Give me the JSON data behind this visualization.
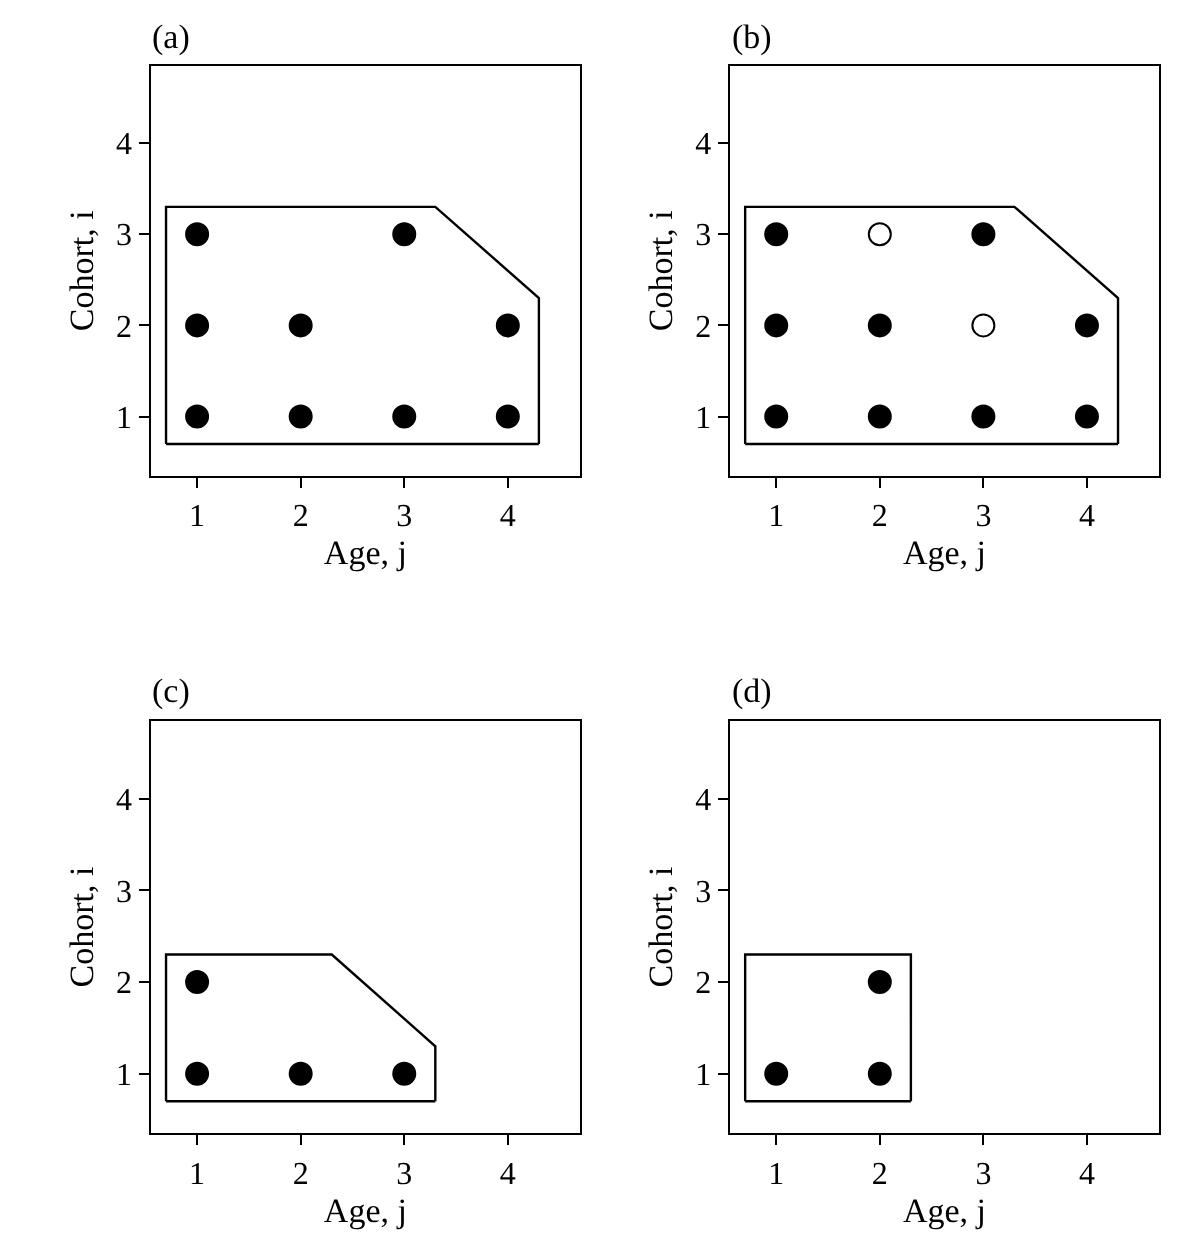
{
  "chart_data": [
    {
      "type": "scatter",
      "title": "(a)",
      "xlabel": "Age, j",
      "ylabel": "Cohort, i",
      "xlim": [
        0.55,
        4.7
      ],
      "ylim": [
        0.35,
        4.85
      ],
      "xticks": [
        1,
        2,
        3,
        4
      ],
      "yticks": [
        1,
        2,
        3,
        4
      ],
      "marker": "circle",
      "series": [
        {
          "color": "#000000",
          "x": [
            1,
            2,
            3,
            4,
            1,
            2,
            4,
            1,
            3
          ],
          "values": [
            1,
            1,
            1,
            1,
            2,
            2,
            2,
            3,
            3
          ]
        },
        {
          "type": "line",
          "marker": "none",
          "line_style": "solid",
          "color": "#000000",
          "x": [
            0.7,
            0.7,
            3.3,
            4.3,
            4.3
          ],
          "values": [
            0.7,
            3.3,
            3.3,
            2.3,
            0.7
          ]
        },
        {
          "type": "line",
          "marker": "none",
          "line_style": "solid",
          "color": "#000000",
          "x": [
            0.7,
            4.3
          ],
          "values": [
            0.7,
            0.7
          ]
        }
      ]
    },
    {
      "type": "scatter",
      "title": "(b)",
      "xlabel": "Age, j",
      "ylabel": "Cohort, i",
      "xlim": [
        0.55,
        4.7
      ],
      "ylim": [
        0.35,
        4.85
      ],
      "xticks": [
        1,
        2,
        3,
        4
      ],
      "yticks": [
        1,
        2,
        3,
        4
      ],
      "marker": "circle",
      "series": [
        {
          "color": "#000000",
          "x": [
            1,
            2,
            3,
            4,
            1,
            2,
            4,
            1,
            3
          ],
          "values": [
            1,
            1,
            1,
            1,
            2,
            2,
            2,
            3,
            3
          ]
        },
        {
          "color": "#ffffff",
          "x": [
            3,
            2
          ],
          "values": [
            2,
            3
          ]
        },
        {
          "type": "line",
          "marker": "none",
          "line_style": "solid",
          "color": "#000000",
          "x": [
            0.7,
            0.7,
            3.3,
            4.3,
            4.3
          ],
          "values": [
            0.7,
            3.3,
            3.3,
            2.3,
            0.7
          ]
        },
        {
          "type": "line",
          "marker": "none",
          "line_style": "solid",
          "color": "#000000",
          "x": [
            0.7,
            4.3
          ],
          "values": [
            0.7,
            0.7
          ]
        }
      ]
    },
    {
      "type": "scatter",
      "title": "(c)",
      "xlabel": "Age, j",
      "ylabel": "Cohort, i",
      "xlim": [
        0.55,
        4.7
      ],
      "ylim": [
        0.35,
        4.85
      ],
      "xticks": [
        1,
        2,
        3,
        4
      ],
      "yticks": [
        1,
        2,
        3,
        4
      ],
      "marker": "circle",
      "series": [
        {
          "color": "#000000",
          "x": [
            1,
            2,
            3,
            1
          ],
          "values": [
            1,
            1,
            1,
            2
          ]
        },
        {
          "type": "line",
          "marker": "none",
          "line_style": "solid",
          "color": "#000000",
          "x": [
            0.7,
            0.7,
            2.3,
            3.3,
            3.3
          ],
          "values": [
            0.7,
            2.3,
            2.3,
            1.3,
            0.7
          ]
        },
        {
          "type": "line",
          "marker": "none",
          "line_style": "solid",
          "color": "#000000",
          "x": [
            0.7,
            3.3
          ],
          "values": [
            0.7,
            0.7
          ]
        }
      ]
    },
    {
      "type": "scatter",
      "title": "(d)",
      "xlabel": "Age, j",
      "ylabel": "Cohort, i",
      "xlim": [
        0.55,
        4.7
      ],
      "ylim": [
        0.35,
        4.85
      ],
      "xticks": [
        1,
        2,
        3,
        4
      ],
      "yticks": [
        1,
        2,
        3,
        4
      ],
      "marker": "circle",
      "series": [
        {
          "color": "#000000",
          "x": [
            1,
            2,
            2
          ],
          "values": [
            1,
            1,
            2
          ]
        },
        {
          "type": "line",
          "marker": "none",
          "line_style": "solid",
          "color": "#000000",
          "x": [
            0.7,
            0.7,
            2.3,
            2.3
          ],
          "values": [
            0.7,
            2.3,
            2.3,
            0.7
          ]
        },
        {
          "type": "line",
          "marker": "none",
          "line_style": "solid",
          "color": "#000000",
          "x": [
            0.7,
            2.3
          ],
          "values": [
            0.7,
            0.7
          ]
        }
      ]
    }
  ]
}
